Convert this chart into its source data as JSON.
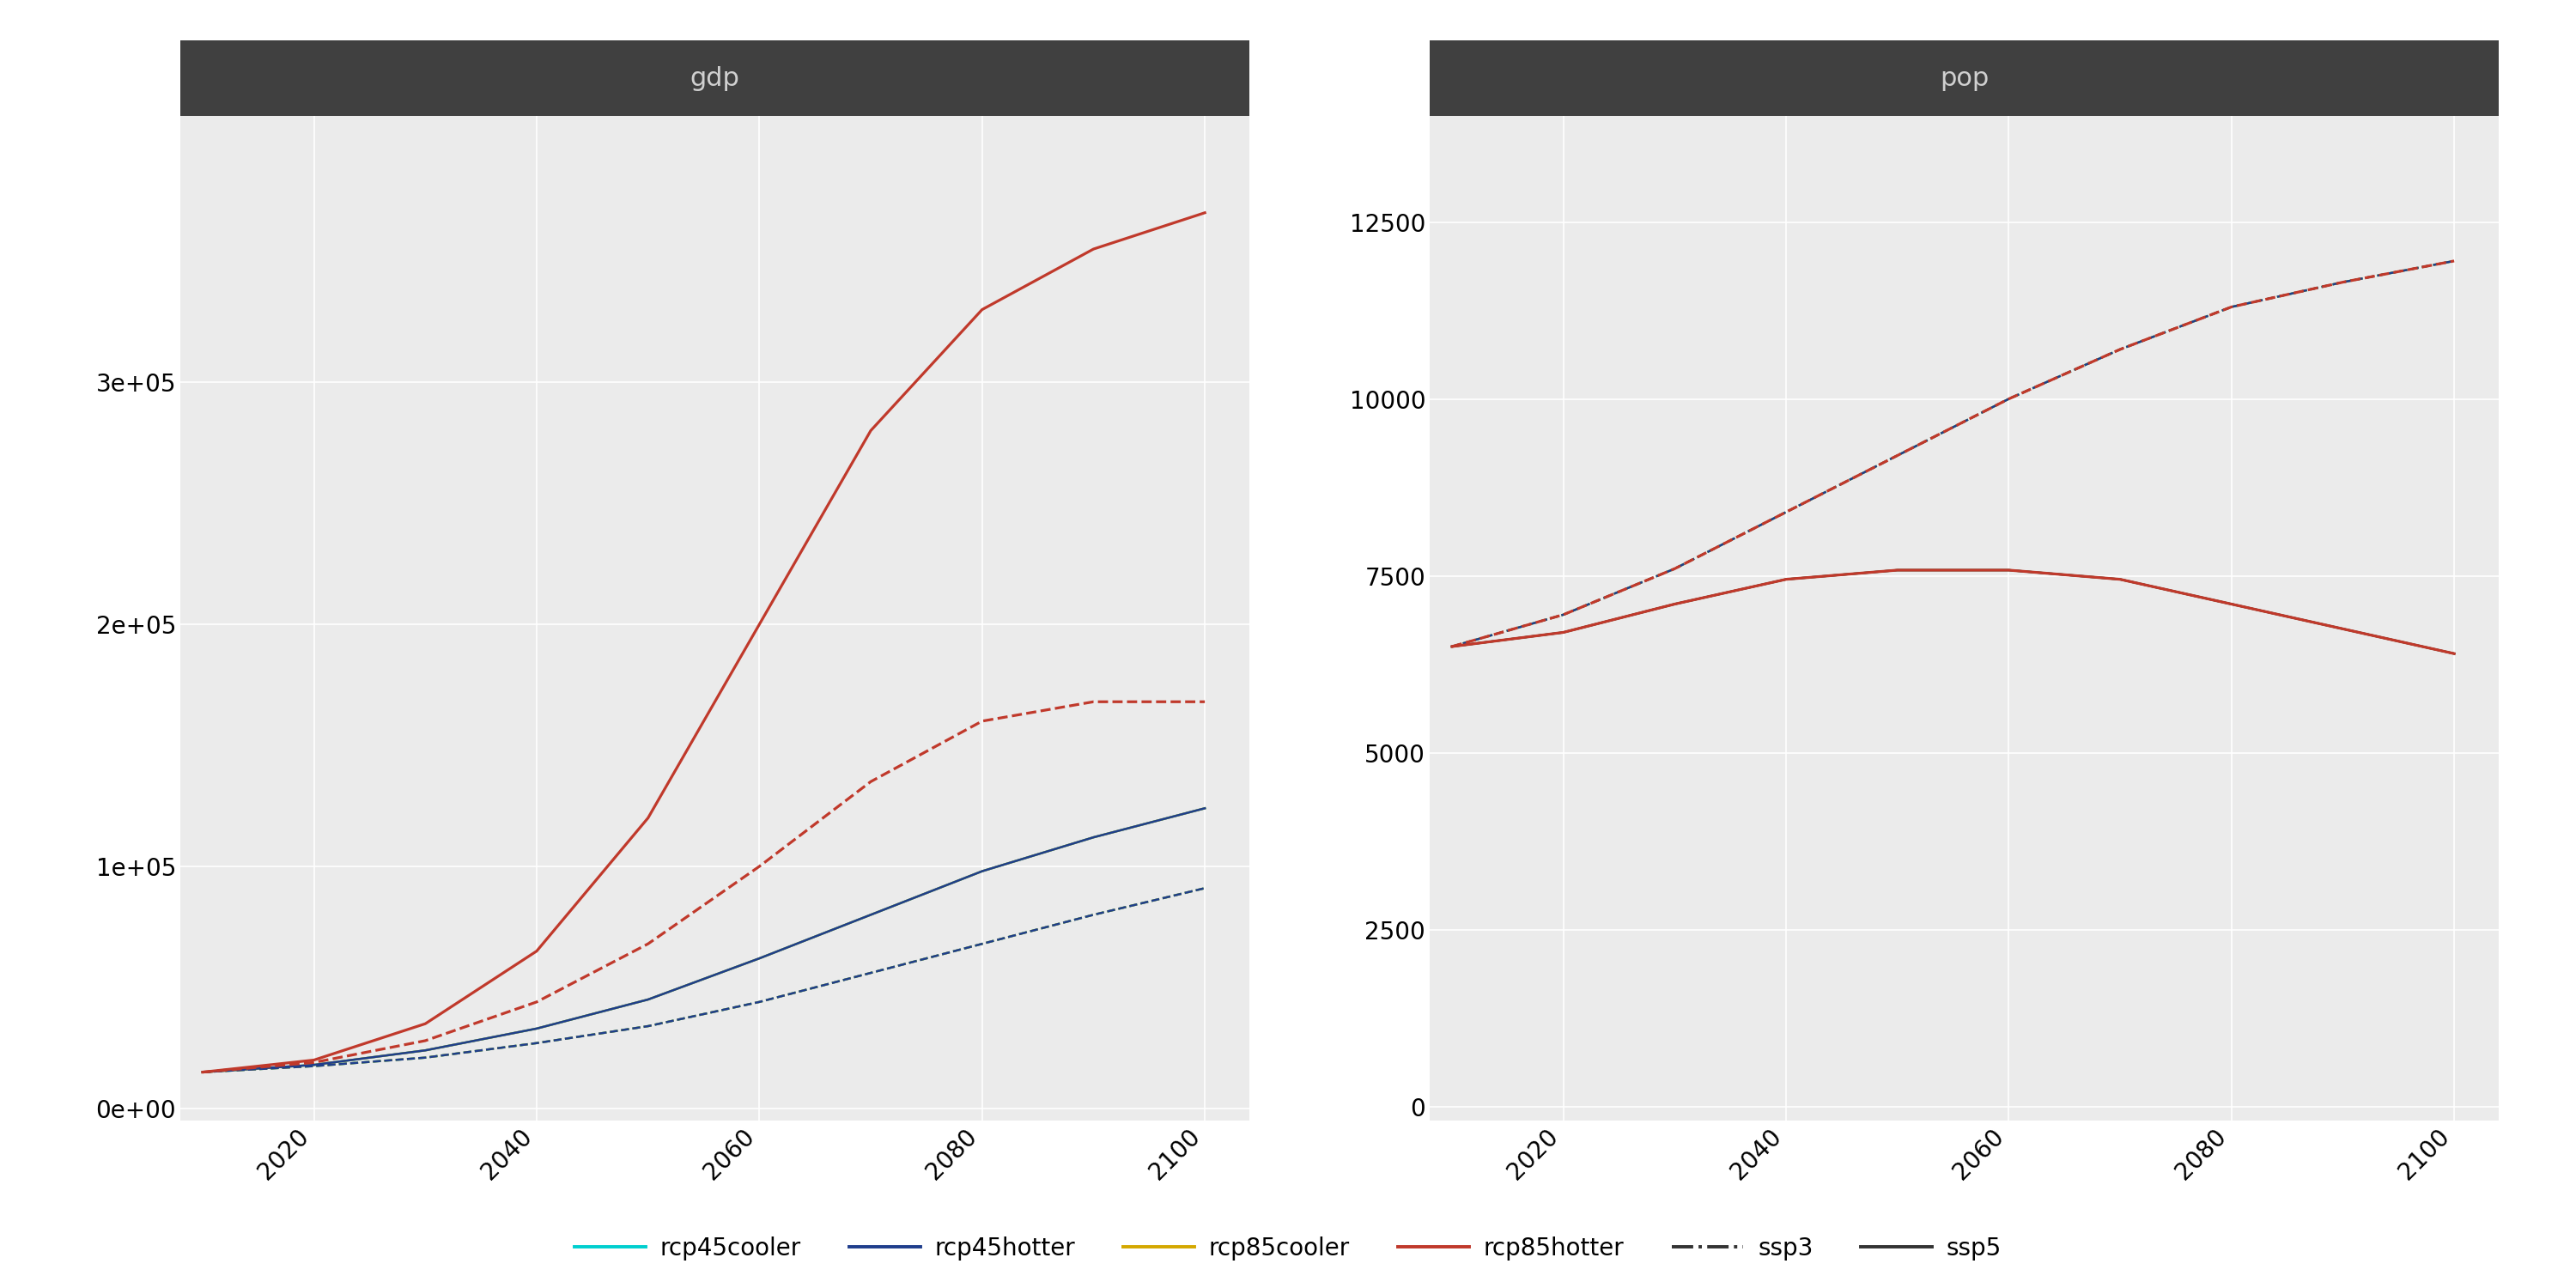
{
  "title_gdp": "gdp",
  "title_pop": "pop",
  "years": [
    2010,
    2020,
    2030,
    2040,
    2050,
    2060,
    2070,
    2080,
    2090,
    2100
  ],
  "gdp_rcp85hotter_ssp5": [
    15000,
    20000,
    35000,
    65000,
    120000,
    200000,
    280000,
    330000,
    355000,
    370000
  ],
  "gdp_rcp85hotter_ssp3": [
    15000,
    19000,
    28000,
    44000,
    68000,
    100000,
    135000,
    160000,
    168000,
    168000
  ],
  "gdp_rcp45hotter_ssp5": [
    15000,
    18000,
    24000,
    33000,
    45000,
    62000,
    80000,
    98000,
    112000,
    124000
  ],
  "gdp_rcp45hotter_ssp3": [
    15000,
    17500,
    21000,
    27000,
    34000,
    44000,
    56000,
    68000,
    80000,
    91000
  ],
  "gdp_rcp45cooler_ssp5": [
    15000,
    18000,
    24000,
    33000,
    45000,
    62000,
    80000,
    98000,
    112000,
    124000
  ],
  "gdp_rcp45cooler_ssp3": [
    15000,
    17500,
    21000,
    27000,
    34000,
    44000,
    56000,
    68000,
    80000,
    91000
  ],
  "gdp_rcp85cooler_ssp5": [
    15000,
    18000,
    24000,
    33000,
    45000,
    62000,
    80000,
    98000,
    112000,
    124000
  ],
  "gdp_rcp85cooler_ssp3": [
    15000,
    17500,
    21000,
    27000,
    34000,
    44000,
    56000,
    68000,
    80000,
    91000
  ],
  "pop_rcp85hotter_ssp5": [
    6500,
    6700,
    7100,
    7450,
    7580,
    7580,
    7450,
    7100,
    6750,
    6400
  ],
  "pop_rcp85hotter_ssp3": [
    6500,
    6950,
    7600,
    8400,
    9200,
    10000,
    10700,
    11300,
    11650,
    11950
  ],
  "pop_rcp45hotter_ssp5": [
    6500,
    6700,
    7100,
    7450,
    7580,
    7580,
    7450,
    7100,
    6750,
    6400
  ],
  "pop_rcp45hotter_ssp3": [
    6500,
    6950,
    7600,
    8400,
    9200,
    10000,
    10700,
    11300,
    11650,
    11950
  ],
  "pop_rcp45cooler_ssp5": [
    6500,
    6700,
    7100,
    7450,
    7580,
    7580,
    7450,
    7100,
    6750,
    6400
  ],
  "pop_rcp45cooler_ssp3": [
    6500,
    6950,
    7600,
    8400,
    9200,
    10000,
    10700,
    11300,
    11650,
    11950
  ],
  "pop_rcp85cooler_ssp5": [
    6500,
    6700,
    7100,
    7450,
    7580,
    7580,
    7450,
    7100,
    6750,
    6400
  ],
  "pop_rcp85cooler_ssp3": [
    6500,
    6950,
    7600,
    8400,
    9200,
    10000,
    10700,
    11300,
    11650,
    11950
  ],
  "color_rcp45cooler": "#00CFCF",
  "color_rcp45hotter": "#1F3E8C",
  "color_rcp85cooler": "#D4A800",
  "color_rcp85hotter": "#C0392B",
  "header_bg": "#404040",
  "header_text": "#d0d0d0",
  "panel_bg": "#ebebeb",
  "grid_color": "#ffffff",
  "gdp_ylim": [
    -5000,
    410000
  ],
  "gdp_yticks": [
    0,
    100000,
    200000,
    300000
  ],
  "gdp_yticklabels": [
    "0e+00",
    "1e+05",
    "2e+05",
    "3e+05"
  ],
  "pop_ylim": [
    -200,
    14000
  ],
  "pop_yticks": [
    0,
    2500,
    5000,
    7500,
    10000,
    12500
  ],
  "pop_yticklabels": [
    "0",
    "2500",
    "5000",
    "7500",
    "10000",
    "12500"
  ],
  "xticks": [
    2020,
    2040,
    2060,
    2080,
    2100
  ],
  "xlim": [
    2008,
    2104
  ],
  "linewidth": 1.8,
  "font_size_tick": 20,
  "font_size_header": 22
}
